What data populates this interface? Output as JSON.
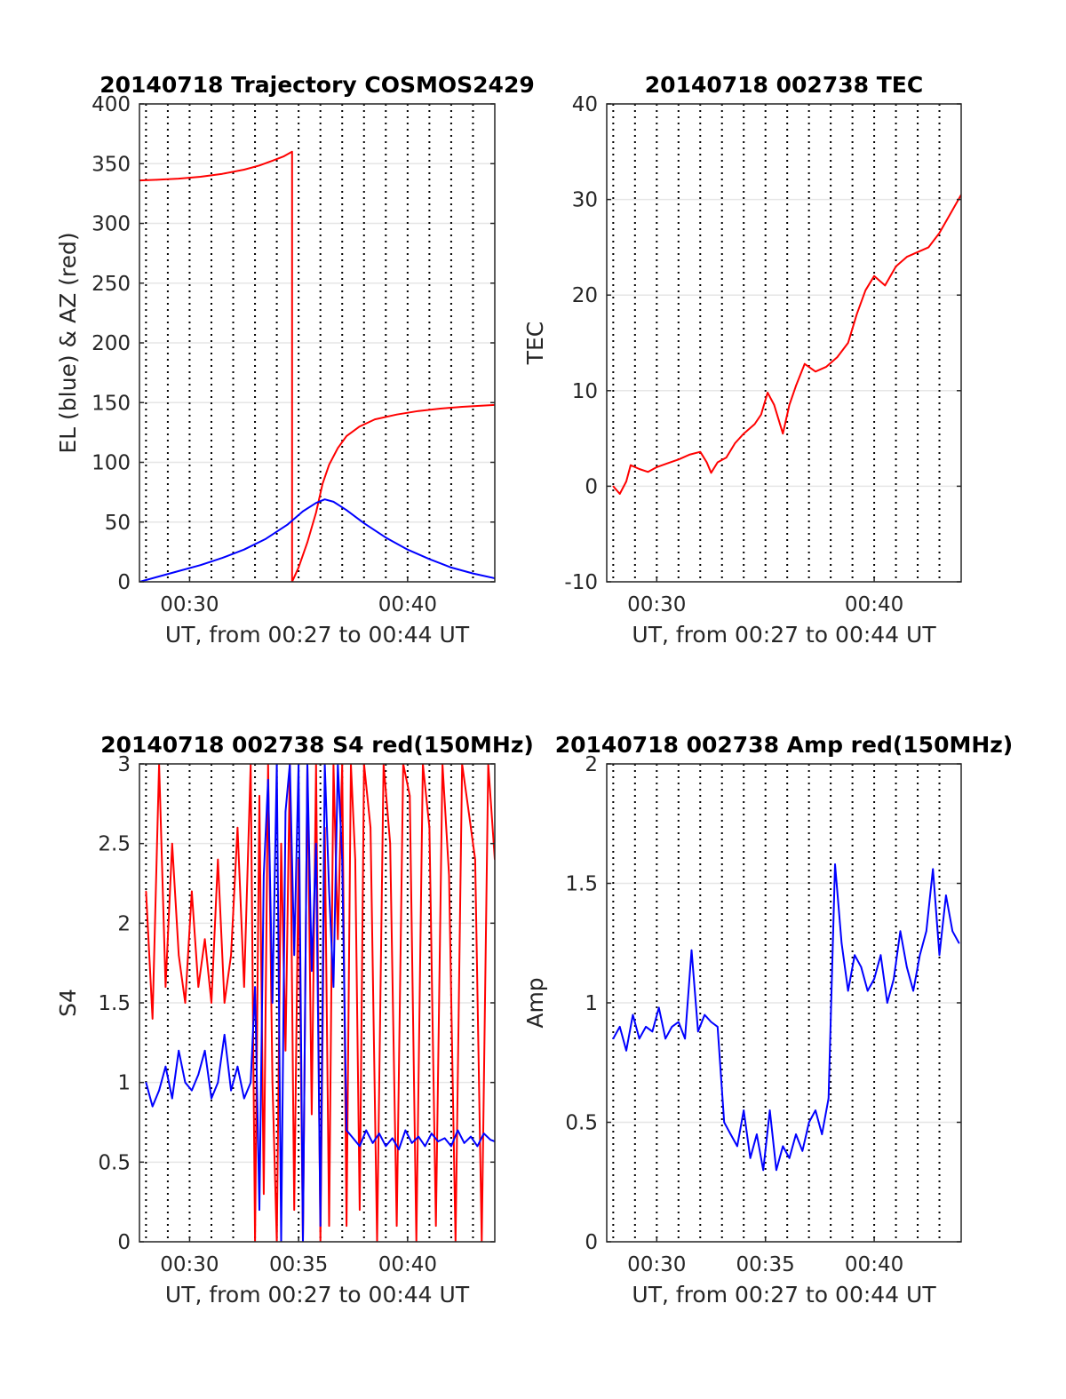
{
  "chart_data": [
    {
      "id": "trajectory",
      "type": "line",
      "title": "20140718 Trajectory COSMOS2429",
      "xlabel": "UT, from 00:27 to 00:44 UT",
      "ylabel": "EL (blue) & AZ (red)",
      "xlim": [
        27.7,
        44.0
      ],
      "ylim": [
        0,
        400
      ],
      "yticks": [
        0,
        50,
        100,
        150,
        200,
        250,
        300,
        350,
        400
      ],
      "ytick_labels": [
        "0",
        "50",
        "100",
        "150",
        "200",
        "250",
        "300",
        "350",
        "400"
      ],
      "xticks": [
        30,
        40
      ],
      "xtick_labels": [
        "00:30",
        "00:40"
      ],
      "grid": true,
      "series": [
        {
          "color": "#ff0000",
          "x": [
            27.7,
            28.5,
            29.5,
            30.5,
            31.5,
            32.5,
            33.2,
            33.8,
            34.3,
            34.7,
            34.7,
            35.0,
            35.4,
            35.8,
            36.1,
            36.4,
            36.8,
            37.2,
            37.8,
            38.5,
            39.5,
            40.5,
            41.5,
            42.5,
            44.0
          ],
          "values": [
            336,
            336.5,
            337.5,
            339,
            341.5,
            345,
            348.5,
            352.5,
            356,
            360,
            0,
            12,
            33,
            58,
            82,
            98,
            112,
            122,
            130,
            136,
            140,
            143,
            145,
            146.5,
            148
          ]
        },
        {
          "color": "#0000ff",
          "x": [
            27.7,
            28.5,
            29.5,
            30.5,
            31.5,
            32.5,
            33.5,
            34.5,
            35.2,
            35.8,
            36.2,
            36.6,
            37.2,
            38.0,
            39.0,
            40.0,
            41.0,
            42.0,
            43.0,
            44.0
          ],
          "values": [
            0,
            4,
            9,
            14,
            20,
            27,
            36,
            48,
            59,
            66,
            69,
            67,
            60,
            49,
            37,
            27,
            19,
            12,
            7,
            3
          ]
        }
      ]
    },
    {
      "id": "tec",
      "type": "line",
      "title": "20140718 002738 TEC",
      "xlabel": "UT, from 00:27 to 00:44 UT",
      "ylabel": "TEC",
      "xlim": [
        27.7,
        44.0
      ],
      "ylim": [
        -10,
        40
      ],
      "yticks": [
        -10,
        0,
        10,
        20,
        30,
        40
      ],
      "ytick_labels": [
        "-10",
        "0",
        "10",
        "20",
        "30",
        "40"
      ],
      "xticks": [
        30,
        40
      ],
      "xtick_labels": [
        "00:30",
        "00:40"
      ],
      "grid": true,
      "series": [
        {
          "color": "#ff0000",
          "x": [
            28.0,
            28.3,
            28.6,
            28.8,
            29.2,
            29.6,
            30.0,
            30.5,
            31.0,
            31.5,
            32.0,
            32.3,
            32.5,
            32.8,
            33.2,
            33.6,
            34.0,
            34.5,
            34.8,
            35.1,
            35.4,
            35.6,
            35.8,
            36.1,
            36.4,
            36.8,
            37.3,
            37.8,
            38.3,
            38.8,
            39.2,
            39.6,
            40.0,
            40.5,
            41.0,
            41.5,
            42.0,
            42.5,
            43.0,
            43.5,
            44.0
          ],
          "values": [
            0,
            -0.8,
            0.5,
            2.2,
            1.8,
            1.5,
            2.0,
            2.4,
            2.8,
            3.3,
            3.6,
            2.5,
            1.4,
            2.5,
            3.0,
            4.5,
            5.5,
            6.5,
            7.5,
            9.8,
            8.5,
            7.0,
            5.5,
            8.5,
            10.5,
            12.8,
            12.0,
            12.5,
            13.5,
            15.0,
            18.0,
            20.5,
            22.0,
            21.0,
            23.0,
            24.0,
            24.5,
            25.0,
            26.5,
            28.5,
            30.5
          ]
        }
      ]
    },
    {
      "id": "s4",
      "type": "line",
      "title": "20140718 002738 S4 red(150MHz)",
      "xlabel": "UT, from 00:27 to 00:44 UT",
      "ylabel": "S4",
      "xlim": [
        27.7,
        44.0
      ],
      "ylim": [
        0,
        3
      ],
      "yticks": [
        0,
        0.5,
        1,
        1.5,
        2,
        2.5,
        3
      ],
      "ytick_labels": [
        "0",
        "0.5",
        "1",
        "1.5",
        "2",
        "2.5",
        "3"
      ],
      "xticks": [
        30,
        35,
        40
      ],
      "xtick_labels": [
        "00:30",
        "00:35",
        "00:40"
      ],
      "grid": true,
      "series": [
        {
          "color": "#ff0000",
          "x": [
            28.0,
            28.3,
            28.6,
            28.9,
            29.2,
            29.5,
            29.8,
            30.1,
            30.4,
            30.7,
            31.0,
            31.3,
            31.6,
            31.9,
            32.2,
            32.5,
            32.8,
            33.0,
            33.2,
            33.4,
            33.6,
            33.8,
            34.0,
            34.2,
            34.4,
            34.6,
            34.8,
            35.0,
            35.2,
            35.4,
            35.6,
            35.8,
            36.0,
            36.2,
            36.4,
            36.6,
            36.8,
            37.0,
            37.2,
            37.4,
            37.6,
            37.8,
            38.0,
            38.3,
            38.6,
            38.9,
            39.2,
            39.5,
            39.8,
            40.1,
            40.4,
            40.7,
            41.0,
            41.3,
            41.6,
            41.9,
            42.2,
            42.5,
            42.8,
            43.1,
            43.4,
            43.7,
            44.0
          ],
          "values": [
            2.2,
            1.4,
            3.0,
            1.6,
            2.5,
            1.8,
            1.5,
            2.2,
            1.6,
            1.9,
            1.5,
            2.4,
            1.5,
            1.8,
            2.6,
            1.6,
            3.0,
            0.0,
            2.8,
            0.3,
            3.0,
            1.0,
            0.0,
            2.5,
            1.2,
            3.0,
            0.2,
            2.4,
            0.0,
            3.0,
            0.8,
            3.0,
            0.0,
            2.6,
            0.1,
            3.0,
            1.9,
            3.0,
            0.1,
            3.0,
            2.4,
            0.2,
            3.0,
            2.6,
            0.0,
            3.0,
            2.5,
            0.1,
            3.0,
            2.8,
            0.0,
            3.0,
            2.6,
            0.1,
            3.0,
            2.3,
            0.0,
            3.0,
            2.7,
            2.4,
            0.0,
            3.0,
            2.4
          ]
        },
        {
          "color": "#0000ff",
          "x": [
            28.0,
            28.3,
            28.6,
            28.9,
            29.2,
            29.5,
            29.8,
            30.1,
            30.4,
            30.7,
            31.0,
            31.3,
            31.6,
            31.9,
            32.2,
            32.5,
            32.8,
            33.0,
            33.2,
            33.4,
            33.6,
            33.8,
            34.0,
            34.2,
            34.4,
            34.6,
            34.8,
            35.0,
            35.2,
            35.4,
            35.6,
            35.8,
            36.0,
            36.2,
            36.4,
            36.6,
            36.8,
            37.0,
            37.2,
            37.5,
            37.8,
            38.1,
            38.4,
            38.7,
            39.0,
            39.3,
            39.6,
            39.9,
            40.2,
            40.5,
            40.8,
            41.1,
            41.4,
            41.7,
            42.0,
            42.3,
            42.6,
            42.9,
            43.2,
            43.5,
            43.8,
            44.0
          ],
          "values": [
            1.0,
            0.85,
            0.95,
            1.1,
            0.9,
            1.2,
            1.0,
            0.95,
            1.05,
            1.2,
            0.9,
            1.0,
            1.3,
            0.95,
            1.1,
            0.9,
            1.0,
            1.6,
            0.2,
            2.3,
            2.9,
            1.5,
            3.0,
            0.0,
            2.7,
            3.0,
            1.8,
            3.0,
            0.0,
            3.0,
            1.7,
            2.5,
            0.1,
            3.0,
            2.2,
            1.6,
            3.0,
            2.4,
            0.7,
            0.65,
            0.6,
            0.7,
            0.62,
            0.68,
            0.6,
            0.65,
            0.58,
            0.7,
            0.62,
            0.66,
            0.6,
            0.68,
            0.63,
            0.65,
            0.6,
            0.7,
            0.62,
            0.66,
            0.6,
            0.68,
            0.64,
            0.63
          ]
        }
      ]
    },
    {
      "id": "amp",
      "type": "line",
      "title": "20140718 002738 Amp red(150MHz)",
      "xlabel": "UT, from 00:27 to 00:44 UT",
      "ylabel": "Amp",
      "xlim": [
        27.7,
        44.0
      ],
      "ylim": [
        0,
        2
      ],
      "yticks": [
        0,
        0.5,
        1,
        1.5,
        2
      ],
      "ytick_labels": [
        "0",
        "0.5",
        "1",
        "1.5",
        "2"
      ],
      "xticks": [
        30,
        35,
        40
      ],
      "xtick_labels": [
        "00:30",
        "00:35",
        "00:40"
      ],
      "grid": true,
      "series": [
        {
          "color": "#0000ff",
          "x": [
            28.0,
            28.3,
            28.6,
            28.9,
            29.2,
            29.5,
            29.8,
            30.1,
            30.4,
            30.7,
            31.0,
            31.3,
            31.6,
            31.9,
            32.2,
            32.5,
            32.8,
            33.1,
            33.4,
            33.7,
            34.0,
            34.3,
            34.6,
            34.9,
            35.2,
            35.5,
            35.8,
            36.1,
            36.4,
            36.7,
            37.0,
            37.3,
            37.6,
            37.9,
            38.2,
            38.5,
            38.8,
            39.1,
            39.4,
            39.7,
            40.0,
            40.3,
            40.6,
            40.9,
            41.2,
            41.5,
            41.8,
            42.1,
            42.4,
            42.7,
            43.0,
            43.3,
            43.6,
            43.9
          ],
          "values": [
            0.85,
            0.9,
            0.8,
            0.95,
            0.85,
            0.9,
            0.88,
            0.98,
            0.85,
            0.9,
            0.92,
            0.85,
            1.22,
            0.88,
            0.95,
            0.92,
            0.9,
            0.5,
            0.45,
            0.4,
            0.55,
            0.35,
            0.45,
            0.3,
            0.55,
            0.3,
            0.4,
            0.35,
            0.45,
            0.38,
            0.5,
            0.55,
            0.45,
            0.6,
            1.58,
            1.25,
            1.05,
            1.2,
            1.15,
            1.05,
            1.1,
            1.2,
            1.0,
            1.1,
            1.3,
            1.15,
            1.05,
            1.2,
            1.3,
            1.56,
            1.2,
            1.45,
            1.3,
            1.25
          ]
        }
      ]
    }
  ]
}
